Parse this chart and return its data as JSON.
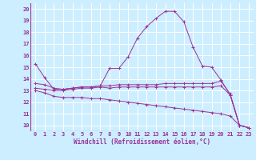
{
  "xlabel": "Windchill (Refroidissement éolien,°C)",
  "bg_color": "#cceeff",
  "grid_color": "#ffffff",
  "line_color": "#993399",
  "xlim": [
    -0.5,
    23.5
  ],
  "ylim": [
    9.5,
    20.5
  ],
  "xticks": [
    0,
    1,
    2,
    3,
    4,
    5,
    6,
    7,
    8,
    9,
    10,
    11,
    12,
    13,
    14,
    15,
    16,
    17,
    18,
    19,
    20,
    21,
    22,
    23
  ],
  "yticks": [
    10,
    11,
    12,
    13,
    14,
    15,
    16,
    17,
    18,
    19,
    20
  ],
  "line1_x": [
    0,
    1,
    2,
    3,
    4,
    5,
    6,
    7,
    8,
    9,
    10,
    11,
    12,
    13,
    14,
    15,
    16,
    17,
    18,
    19,
    20,
    21,
    22,
    23
  ],
  "line1_y": [
    15.3,
    14.1,
    13.1,
    13.1,
    13.2,
    13.3,
    13.3,
    13.4,
    14.9,
    14.9,
    15.9,
    17.5,
    18.5,
    19.2,
    19.8,
    19.8,
    18.9,
    16.7,
    15.1,
    15.0,
    13.9,
    12.6,
    10.0,
    9.8
  ],
  "line2_x": [
    0,
    1,
    2,
    3,
    4,
    5,
    6,
    7,
    8,
    9,
    10,
    11,
    12,
    13,
    14,
    15,
    16,
    17,
    18,
    19,
    20,
    21,
    22,
    23
  ],
  "line2_y": [
    13.6,
    13.5,
    13.2,
    13.1,
    13.2,
    13.3,
    13.3,
    13.4,
    13.4,
    13.5,
    13.5,
    13.5,
    13.5,
    13.5,
    13.6,
    13.6,
    13.6,
    13.6,
    13.6,
    13.6,
    13.8,
    12.7,
    10.0,
    9.8
  ],
  "line3_x": [
    0,
    1,
    2,
    3,
    4,
    5,
    6,
    7,
    8,
    9,
    10,
    11,
    12,
    13,
    14,
    15,
    16,
    17,
    18,
    19,
    20,
    21,
    22,
    23
  ],
  "line3_y": [
    13.2,
    13.1,
    13.0,
    13.0,
    13.1,
    13.2,
    13.2,
    13.3,
    13.2,
    13.3,
    13.3,
    13.3,
    13.3,
    13.3,
    13.3,
    13.3,
    13.3,
    13.3,
    13.3,
    13.3,
    13.4,
    12.6,
    10.0,
    9.8
  ],
  "line4_x": [
    0,
    1,
    2,
    3,
    4,
    5,
    6,
    7,
    8,
    9,
    10,
    11,
    12,
    13,
    14,
    15,
    16,
    17,
    18,
    19,
    20,
    21,
    22,
    23
  ],
  "line4_y": [
    13.0,
    12.8,
    12.5,
    12.4,
    12.4,
    12.4,
    12.3,
    12.3,
    12.2,
    12.1,
    12.0,
    11.9,
    11.8,
    11.7,
    11.6,
    11.5,
    11.4,
    11.3,
    11.2,
    11.1,
    11.0,
    10.8,
    10.0,
    9.8
  ]
}
